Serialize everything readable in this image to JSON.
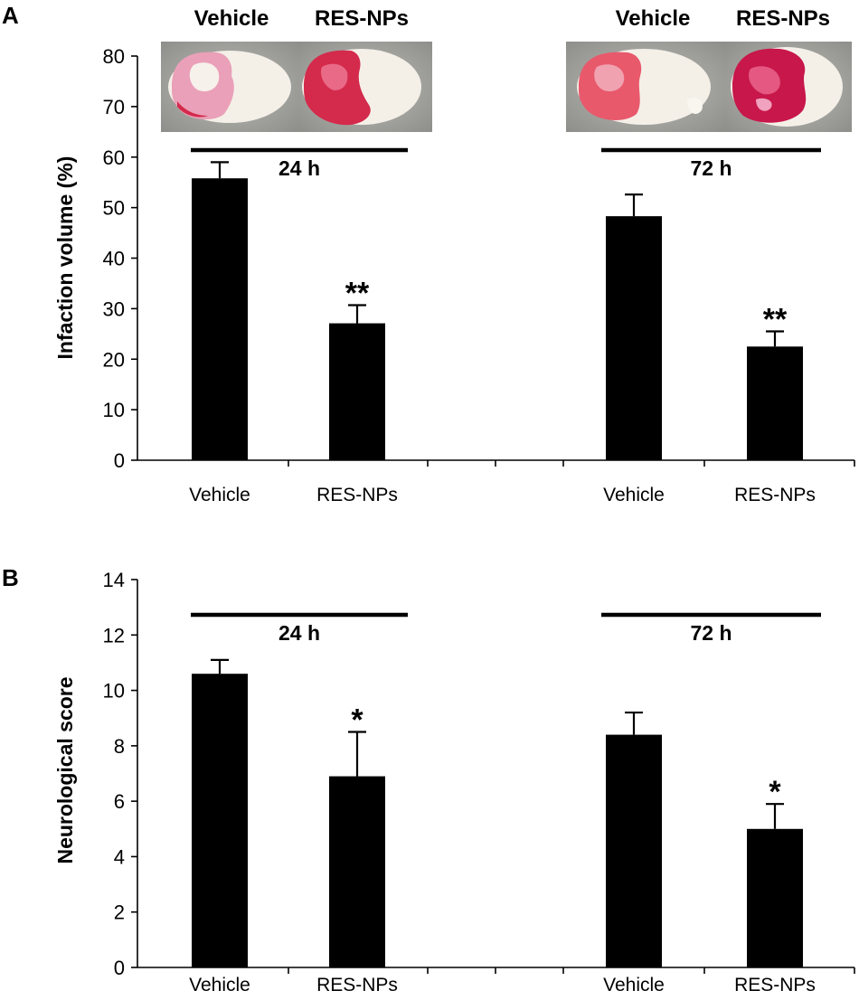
{
  "panels": {
    "A": {
      "letter": "A"
    },
    "B": {
      "letter": "B"
    }
  },
  "photos": {
    "group_24h": {
      "labels": [
        "Vehicle",
        "RES-NPs"
      ]
    },
    "group_72h": {
      "labels": [
        "Vehicle",
        "RES-NPs"
      ]
    }
  },
  "colors": {
    "bar": "#000000",
    "axis": "#000000",
    "slice_red": "#d42a4c",
    "slice_pink": "#eaa0b8",
    "slice_white": "#f4f0e8",
    "photo_bg": "#a8a8a4"
  },
  "chart_data": [
    {
      "panel": "A",
      "type": "bar",
      "categories": [
        "Vehicle",
        "RES-NPs",
        "Vehicle",
        "RES-NPs"
      ],
      "values": [
        55.8,
        27.1,
        48.3,
        22.5
      ],
      "errors": [
        3.2,
        3.6,
        4.3,
        3.0
      ],
      "significance": [
        "",
        "**",
        "",
        "**"
      ],
      "groups": [
        {
          "label": "24 h",
          "indices": [
            0,
            1
          ]
        },
        {
          "label": "72 h",
          "indices": [
            2,
            3
          ]
        }
      ],
      "title": "",
      "xlabel": "",
      "ylabel": "Infaction volume (%)",
      "ylim": [
        0,
        80
      ],
      "yticks": [
        0,
        10,
        20,
        30,
        40,
        50,
        60,
        70,
        80
      ],
      "grid": false
    },
    {
      "panel": "B",
      "type": "bar",
      "categories": [
        "Vehicle",
        "RES-NPs",
        "Vehicle",
        "RES-NPs"
      ],
      "values": [
        10.6,
        6.9,
        8.4,
        5.0
      ],
      "errors": [
        0.5,
        1.6,
        0.8,
        0.9
      ],
      "significance": [
        "",
        "*",
        "",
        "*"
      ],
      "groups": [
        {
          "label": "24 h",
          "indices": [
            0,
            1
          ]
        },
        {
          "label": "72 h",
          "indices": [
            2,
            3
          ]
        }
      ],
      "title": "",
      "xlabel": "",
      "ylabel": "Neurological score",
      "ylim": [
        0,
        14
      ],
      "yticks": [
        0,
        2,
        4,
        6,
        8,
        10,
        12,
        14
      ],
      "grid": false
    }
  ]
}
